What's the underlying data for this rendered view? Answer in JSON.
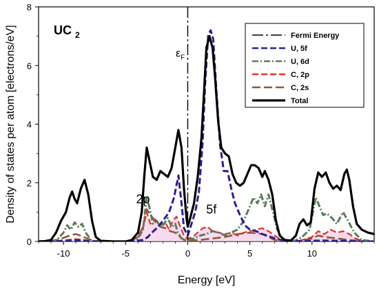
{
  "chart_data": {
    "type": "line",
    "title": "UC",
    "title_sub": "2",
    "xlabel": "Energy [eV]",
    "ylabel": "Density of states per atom [electrons/eV]",
    "xlim": [
      -12,
      15
    ],
    "ylim": [
      0,
      8
    ],
    "xticks": [
      -10,
      -5,
      0,
      5,
      10
    ],
    "yticks": [
      0,
      2,
      4,
      6,
      8
    ],
    "legend_position": "top-right",
    "fermi_energy": 0,
    "annotations": [
      {
        "text": "ε",
        "subscript": "F",
        "x": -0.6,
        "y": 6.3
      },
      {
        "text": "2p",
        "x": -3.6,
        "y": 1.3
      },
      {
        "text": "5f",
        "x": 1.9,
        "y": 0.95
      }
    ],
    "series": [
      {
        "name": "Fermi Energy",
        "color": "#000000",
        "style": "dashdot-long",
        "kind": "vline"
      },
      {
        "name": "U, 5f",
        "color": "#2a1f8f",
        "style": "dashed",
        "points": [
          [
            -12,
            0
          ],
          [
            -11,
            0
          ],
          [
            -10.5,
            0.01
          ],
          [
            -10,
            0.02
          ],
          [
            -9.5,
            0.03
          ],
          [
            -9,
            0.04
          ],
          [
            -8.5,
            0.03
          ],
          [
            -8,
            0.01
          ],
          [
            -7.5,
            0
          ],
          [
            -6,
            0
          ],
          [
            -5,
            0
          ],
          [
            -4.5,
            0.01
          ],
          [
            -4,
            0.03
          ],
          [
            -3.6,
            0.05
          ],
          [
            -3.2,
            0.15
          ],
          [
            -3,
            0.25
          ],
          [
            -2.5,
            0.45
          ],
          [
            -2,
            0.7
          ],
          [
            -1.5,
            1.0
          ],
          [
            -1.1,
            1.5
          ],
          [
            -0.75,
            2.25
          ],
          [
            -0.5,
            1.3
          ],
          [
            -0.3,
            0.45
          ],
          [
            0,
            0.2
          ],
          [
            0.3,
            0.6
          ],
          [
            0.6,
            1.0
          ],
          [
            0.9,
            1.7
          ],
          [
            1.2,
            3.4
          ],
          [
            1.4,
            5.4
          ],
          [
            1.65,
            7.05
          ],
          [
            1.85,
            7.2
          ],
          [
            2.05,
            6.9
          ],
          [
            2.3,
            5.2
          ],
          [
            2.6,
            3.3
          ],
          [
            2.9,
            2.4
          ],
          [
            3.2,
            2.4
          ],
          [
            3.5,
            1.8
          ],
          [
            3.8,
            1.3
          ],
          [
            4.2,
            0.9
          ],
          [
            4.6,
            0.55
          ],
          [
            5,
            0.4
          ],
          [
            5.5,
            0.35
          ],
          [
            6,
            0.25
          ],
          [
            6.5,
            0.18
          ],
          [
            7,
            0.1
          ],
          [
            7.5,
            0.05
          ],
          [
            8,
            0.02
          ],
          [
            9,
            0.01
          ],
          [
            10,
            0.02
          ],
          [
            11,
            0.03
          ],
          [
            12,
            0.02
          ],
          [
            13,
            0.01
          ],
          [
            14,
            0
          ],
          [
            15,
            0
          ]
        ]
      },
      {
        "name": "U, 6d",
        "color": "#5a7a5a",
        "style": "dashdot",
        "points": [
          [
            -12,
            0
          ],
          [
            -11,
            0.01
          ],
          [
            -10.5,
            0.06
          ],
          [
            -10,
            0.3
          ],
          [
            -9.7,
            0.55
          ],
          [
            -9.4,
            0.4
          ],
          [
            -9.1,
            0.65
          ],
          [
            -8.8,
            0.5
          ],
          [
            -8.5,
            0.6
          ],
          [
            -8.2,
            0.3
          ],
          [
            -7.8,
            0.05
          ],
          [
            -7.4,
            0
          ],
          [
            -5,
            0
          ],
          [
            -4.5,
            0.02
          ],
          [
            -4,
            0.1
          ],
          [
            -3.6,
            0.4
          ],
          [
            -3.3,
            1.5
          ],
          [
            -3.1,
            1.2
          ],
          [
            -2.8,
            0.6
          ],
          [
            -2.5,
            0.7
          ],
          [
            -2.2,
            0.5
          ],
          [
            -1.9,
            0.6
          ],
          [
            -1.6,
            0.8
          ],
          [
            -1.3,
            0.5
          ],
          [
            -1,
            0.6
          ],
          [
            -0.8,
            0.3
          ],
          [
            -0.5,
            0.1
          ],
          [
            0,
            0.05
          ],
          [
            0.5,
            0.1
          ],
          [
            1,
            0.2
          ],
          [
            1.5,
            0.25
          ],
          [
            2,
            0.35
          ],
          [
            2.5,
            0.3
          ],
          [
            3,
            0.2
          ],
          [
            3.5,
            0.3
          ],
          [
            4,
            0.4
          ],
          [
            4.5,
            0.7
          ],
          [
            5,
            1.2
          ],
          [
            5.3,
            1.5
          ],
          [
            5.6,
            1.3
          ],
          [
            5.9,
            1.6
          ],
          [
            6.2,
            1.2
          ],
          [
            6.5,
            1.6
          ],
          [
            6.8,
            1.1
          ],
          [
            7.2,
            0.4
          ],
          [
            7.6,
            0.1
          ],
          [
            8,
            0
          ],
          [
            8.6,
            0.02
          ],
          [
            9.2,
            0.15
          ],
          [
            9.8,
            0.4
          ],
          [
            10.3,
            1.5
          ],
          [
            10.6,
            1.2
          ],
          [
            10.9,
            0.9
          ],
          [
            11.2,
            0.95
          ],
          [
            11.6,
            0.8
          ],
          [
            12,
            0.6
          ],
          [
            12.5,
            1.0
          ],
          [
            12.9,
            0.7
          ],
          [
            13.4,
            0.3
          ],
          [
            14,
            0.05
          ],
          [
            15,
            0
          ]
        ]
      },
      {
        "name": "C, 2p",
        "color": "#e0302a",
        "style": "dashed",
        "points": [
          [
            -12,
            0
          ],
          [
            -11,
            0.01
          ],
          [
            -10,
            0.03
          ],
          [
            -9.5,
            0.06
          ],
          [
            -9,
            0.08
          ],
          [
            -8.5,
            0.06
          ],
          [
            -8,
            0.03
          ],
          [
            -7.5,
            0.01
          ],
          [
            -6,
            0
          ],
          [
            -5,
            0
          ],
          [
            -4.5,
            0.05
          ],
          [
            -4,
            0.15
          ],
          [
            -3.6,
            0.45
          ],
          [
            -3.3,
            1.0
          ],
          [
            -3,
            0.6
          ],
          [
            -2.6,
            0.75
          ],
          [
            -2.2,
            0.55
          ],
          [
            -1.8,
            0.65
          ],
          [
            -1.5,
            0.4
          ],
          [
            -1.2,
            0.7
          ],
          [
            -0.9,
            0.85
          ],
          [
            -0.6,
            0.5
          ],
          [
            -0.3,
            0.2
          ],
          [
            0,
            0.1
          ],
          [
            0.4,
            0.15
          ],
          [
            0.8,
            0.3
          ],
          [
            1.2,
            0.45
          ],
          [
            1.6,
            0.5
          ],
          [
            2,
            0.35
          ],
          [
            2.5,
            0.3
          ],
          [
            3,
            0.25
          ],
          [
            3.5,
            0.3
          ],
          [
            4,
            0.2
          ],
          [
            4.5,
            0.3
          ],
          [
            5,
            0.35
          ],
          [
            5.5,
            0.4
          ],
          [
            6,
            0.45
          ],
          [
            6.5,
            0.35
          ],
          [
            7,
            0.2
          ],
          [
            7.5,
            0.05
          ],
          [
            8,
            0
          ],
          [
            9,
            0.02
          ],
          [
            10,
            0.15
          ],
          [
            10.5,
            0.35
          ],
          [
            11,
            0.25
          ],
          [
            11.5,
            0.4
          ],
          [
            12,
            0.3
          ],
          [
            12.5,
            0.35
          ],
          [
            13,
            0.25
          ],
          [
            13.5,
            0.1
          ],
          [
            14,
            0.02
          ],
          [
            15,
            0
          ]
        ]
      },
      {
        "name": "C, 2s",
        "color": "#8a5a3a",
        "style": "dashed-long",
        "points": [
          [
            -12,
            0
          ],
          [
            -11,
            0.01
          ],
          [
            -10.5,
            0.05
          ],
          [
            -10,
            0.12
          ],
          [
            -9.5,
            0.2
          ],
          [
            -9,
            0.25
          ],
          [
            -8.5,
            0.18
          ],
          [
            -8,
            0.08
          ],
          [
            -7.5,
            0.02
          ],
          [
            -6,
            0
          ],
          [
            -5,
            0
          ],
          [
            -4.5,
            0.03
          ],
          [
            -4,
            0.15
          ],
          [
            -3.6,
            0.5
          ],
          [
            -3.3,
            1.1
          ],
          [
            -3,
            0.9
          ],
          [
            -2.6,
            0.7
          ],
          [
            -2.2,
            0.5
          ],
          [
            -1.8,
            0.45
          ],
          [
            -1.4,
            0.35
          ],
          [
            -1,
            0.3
          ],
          [
            -0.6,
            0.15
          ],
          [
            -0.3,
            0.05
          ],
          [
            0,
            0.02
          ],
          [
            1,
            0.05
          ],
          [
            2,
            0.1
          ],
          [
            3,
            0.15
          ],
          [
            4,
            0.25
          ],
          [
            5,
            0.3
          ],
          [
            6,
            0.25
          ],
          [
            6.5,
            0.15
          ],
          [
            7,
            0.05
          ],
          [
            8,
            0
          ],
          [
            9,
            0.02
          ],
          [
            10,
            0.1
          ],
          [
            10.5,
            0.2
          ],
          [
            11,
            0.15
          ],
          [
            12,
            0.1
          ],
          [
            13,
            0.05
          ],
          [
            14,
            0.01
          ],
          [
            15,
            0
          ]
        ]
      },
      {
        "name": "Total",
        "color": "#000000",
        "style": "solid",
        "points": [
          [
            -12,
            0
          ],
          [
            -11.5,
            0.01
          ],
          [
            -11,
            0.05
          ],
          [
            -10.6,
            0.3
          ],
          [
            -10.2,
            0.7
          ],
          [
            -9.8,
            1.0
          ],
          [
            -9.5,
            1.5
          ],
          [
            -9.3,
            1.7
          ],
          [
            -9.1,
            1.45
          ],
          [
            -8.9,
            1.3
          ],
          [
            -8.6,
            1.8
          ],
          [
            -8.3,
            2.1
          ],
          [
            -8.0,
            1.6
          ],
          [
            -7.7,
            0.7
          ],
          [
            -7.4,
            0.15
          ],
          [
            -7,
            0.02
          ],
          [
            -6,
            0
          ],
          [
            -5,
            0
          ],
          [
            -4.5,
            0.05
          ],
          [
            -4,
            0.3
          ],
          [
            -3.7,
            1.0
          ],
          [
            -3.5,
            2.2
          ],
          [
            -3.3,
            3.2
          ],
          [
            -3.1,
            2.8
          ],
          [
            -2.8,
            2.2
          ],
          [
            -2.5,
            2.1
          ],
          [
            -2.2,
            2.4
          ],
          [
            -1.9,
            2.3
          ],
          [
            -1.6,
            2.2
          ],
          [
            -1.3,
            2.5
          ],
          [
            -1.0,
            3.2
          ],
          [
            -0.75,
            3.8
          ],
          [
            -0.5,
            3.2
          ],
          [
            -0.3,
            1.8
          ],
          [
            -0.1,
            0.8
          ],
          [
            0,
            0.5
          ],
          [
            0.2,
            0.8
          ],
          [
            0.5,
            1.3
          ],
          [
            0.8,
            2.2
          ],
          [
            1.1,
            3.5
          ],
          [
            1.3,
            5.0
          ],
          [
            1.5,
            6.6
          ],
          [
            1.75,
            7.0
          ],
          [
            2.0,
            6.6
          ],
          [
            2.2,
            5.6
          ],
          [
            2.45,
            4.1
          ],
          [
            2.7,
            3.2
          ],
          [
            3.0,
            3.0
          ],
          [
            3.3,
            2.9
          ],
          [
            3.6,
            2.3
          ],
          [
            3.9,
            2.0
          ],
          [
            4.2,
            1.9
          ],
          [
            4.5,
            2.0
          ],
          [
            4.8,
            2.3
          ],
          [
            5.1,
            2.6
          ],
          [
            5.4,
            2.6
          ],
          [
            5.7,
            2.5
          ],
          [
            6.0,
            2.2
          ],
          [
            6.2,
            2.4
          ],
          [
            6.5,
            2.1
          ],
          [
            6.8,
            1.6
          ],
          [
            7.1,
            0.7
          ],
          [
            7.4,
            0.2
          ],
          [
            7.8,
            0.05
          ],
          [
            8.3,
            0.03
          ],
          [
            8.7,
            0.2
          ],
          [
            9.0,
            0.6
          ],
          [
            9.3,
            0.75
          ],
          [
            9.6,
            0.55
          ],
          [
            9.9,
            0.65
          ],
          [
            10.2,
            1.8
          ],
          [
            10.5,
            2.35
          ],
          [
            10.8,
            2.2
          ],
          [
            11.1,
            2.35
          ],
          [
            11.4,
            2.0
          ],
          [
            11.7,
            1.8
          ],
          [
            12.0,
            1.9
          ],
          [
            12.3,
            1.75
          ],
          [
            12.6,
            2.3
          ],
          [
            12.8,
            2.45
          ],
          [
            13.0,
            2.1
          ],
          [
            13.3,
            1.2
          ],
          [
            13.6,
            0.6
          ],
          [
            14.0,
            0.4
          ],
          [
            14.5,
            0.3
          ],
          [
            15,
            0.25
          ]
        ]
      }
    ]
  }
}
